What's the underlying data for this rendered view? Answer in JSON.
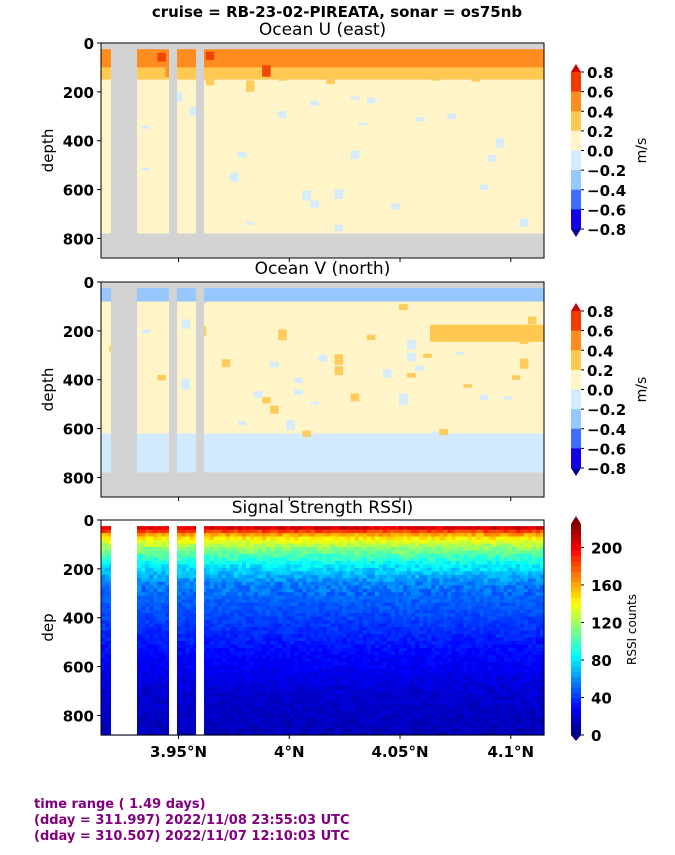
{
  "suptitle": "cruise = RB-23-02-PIREATA,  sonar = os75nb",
  "chart_data": [
    {
      "type": "heatmap",
      "title": "Ocean U (east)",
      "ylabel": "depth",
      "yticks": [
        "0",
        "200",
        "400",
        "600",
        "800"
      ],
      "ylim": [
        880,
        0
      ],
      "xlim": [
        3.915,
        4.115
      ],
      "colorbar": {
        "label": "m/s",
        "ticks": [
          "0.8",
          "0.6",
          "0.4",
          "0.2",
          "0.0",
          "−0.2",
          "−0.4",
          "−0.6",
          "−0.8"
        ],
        "colors": [
          "#c80000",
          "#f03c00",
          "#ff8c1e",
          "#ffc850",
          "#fff5c8",
          "#d2ebff",
          "#96c8ff",
          "#3c6eff",
          "#1400e6",
          "#0000a0"
        ]
      },
      "depth_layers": [
        {
          "from": 25,
          "to": 100,
          "value": 0.5
        },
        {
          "from": 100,
          "to": 150,
          "value": 0.3
        },
        {
          "from": 150,
          "to": 780,
          "value": 0.05
        }
      ]
    },
    {
      "type": "heatmap",
      "title": "Ocean V (north)",
      "ylabel": "depth",
      "yticks": [
        "0",
        "200",
        "400",
        "600",
        "800"
      ],
      "ylim": [
        880,
        0
      ],
      "xlim": [
        3.915,
        4.115
      ],
      "colorbar": {
        "label": "m/s",
        "ticks": [
          "0.8",
          "0.6",
          "0.4",
          "0.2",
          "0.0",
          "−0.2",
          "−0.4",
          "−0.6",
          "−0.8"
        ],
        "colors": [
          "#c80000",
          "#f03c00",
          "#ff8c1e",
          "#ffc850",
          "#fff5c8",
          "#d2ebff",
          "#96c8ff",
          "#3c6eff",
          "#1400e6",
          "#0000a0"
        ]
      },
      "depth_layers": [
        {
          "from": 25,
          "to": 80,
          "value": -0.2
        },
        {
          "from": 80,
          "to": 620,
          "value": 0.05
        },
        {
          "from": 620,
          "to": 780,
          "value": -0.1
        }
      ]
    },
    {
      "type": "heatmap",
      "title": "Signal Strength RSSI)",
      "ylabel": "dep",
      "yticks": [
        "0",
        "200",
        "400",
        "600",
        "800"
      ],
      "ylim": [
        880,
        0
      ],
      "xlim": [
        3.915,
        4.115
      ],
      "xticks": [
        "3.95°N",
        "4°N",
        "4.05°N",
        "4.1°N"
      ],
      "xtick_values": [
        3.95,
        4.0,
        4.05,
        4.1
      ],
      "colorbar": {
        "label": "RSSI counts",
        "ticks": [
          "200",
          "160",
          "120",
          "80",
          "40",
          "0"
        ],
        "tick_values": [
          200,
          160,
          120,
          80,
          40,
          0
        ],
        "range": [
          0,
          225
        ],
        "colormap": "jet"
      },
      "rssi_profile": [
        {
          "depth": 25,
          "value": 205
        },
        {
          "depth": 60,
          "value": 150
        },
        {
          "depth": 110,
          "value": 115
        },
        {
          "depth": 180,
          "value": 80
        },
        {
          "depth": 260,
          "value": 55
        },
        {
          "depth": 400,
          "value": 42
        },
        {
          "depth": 530,
          "value": 30
        },
        {
          "depth": 700,
          "value": 18
        },
        {
          "depth": 880,
          "value": 12
        }
      ]
    }
  ],
  "footer": {
    "line1": "time range ( 1.49 days)",
    "line2": "(dday = 311.997) 2022/11/08 23:55:03 UTC",
    "line3": "(dday = 310.507) 2022/11/07 12:10:03 UTC"
  }
}
